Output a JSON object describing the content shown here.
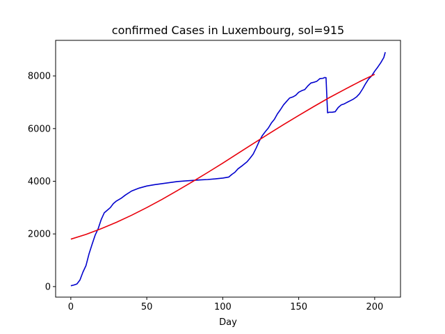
{
  "chart_data": {
    "type": "line",
    "title": "confirmed Cases in Luxembourg, sol=915",
    "xlabel": "Day",
    "ylabel": "",
    "xlim": [
      -10,
      217
    ],
    "ylim": [
      -400,
      9350
    ],
    "xticks": [
      0,
      50,
      100,
      150,
      200
    ],
    "yticks": [
      0,
      2000,
      4000,
      6000,
      8000
    ],
    "grid": false,
    "series": [
      {
        "color": "#0000cd",
        "x": [
          0,
          2,
          4,
          6,
          8,
          10,
          12,
          14,
          16,
          18,
          20,
          22,
          24,
          26,
          28,
          30,
          33,
          36,
          40,
          45,
          50,
          55,
          60,
          65,
          70,
          75,
          80,
          85,
          90,
          95,
          100,
          104,
          106,
          108,
          110,
          113,
          116,
          118,
          120,
          122,
          124,
          126,
          128,
          130,
          132,
          134,
          136,
          138,
          140,
          142,
          144,
          146,
          148,
          150,
          152,
          154,
          156,
          158,
          160,
          162,
          164,
          166,
          167,
          168,
          169,
          170,
          172,
          174,
          176,
          178,
          180,
          182,
          184,
          186,
          188,
          190,
          192,
          194,
          196,
          198,
          200,
          202,
          204,
          206,
          207
        ],
        "y": [
          30,
          60,
          100,
          250,
          550,
          800,
          1250,
          1600,
          1950,
          2200,
          2550,
          2800,
          2900,
          3000,
          3150,
          3250,
          3350,
          3480,
          3630,
          3740,
          3820,
          3870,
          3910,
          3950,
          3990,
          4010,
          4030,
          4050,
          4065,
          4090,
          4120,
          4160,
          4260,
          4340,
          4470,
          4600,
          4740,
          4880,
          5030,
          5260,
          5520,
          5730,
          5880,
          6020,
          6210,
          6350,
          6560,
          6720,
          6900,
          7030,
          7160,
          7200,
          7260,
          7380,
          7440,
          7480,
          7620,
          7730,
          7760,
          7800,
          7900,
          7910,
          7940,
          7930,
          6600,
          6620,
          6620,
          6640,
          6800,
          6900,
          6940,
          7000,
          7060,
          7120,
          7200,
          7320,
          7500,
          7700,
          7880,
          8000,
          8180,
          8330,
          8500,
          8700,
          8900
        ]
      },
      {
        "color": "#e8000b",
        "x": [
          0,
          10,
          20,
          30,
          40,
          50,
          60,
          70,
          80,
          90,
          100,
          110,
          120,
          130,
          140,
          150,
          160,
          170,
          180,
          190,
          200
        ],
        "y": [
          1800,
          1980,
          2200,
          2440,
          2710,
          3000,
          3310,
          3640,
          3980,
          4330,
          4690,
          5060,
          5430,
          5790,
          6150,
          6500,
          6840,
          7170,
          7480,
          7780,
          8060
        ]
      }
    ]
  }
}
